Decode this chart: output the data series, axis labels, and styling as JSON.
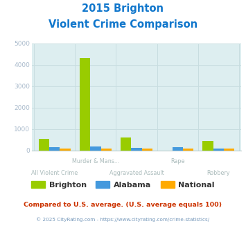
{
  "title_line1": "2015 Brighton",
  "title_line2": "Violent Crime Comparison",
  "categories": [
    "All Violent Crime",
    "Murder & Mans...",
    "Aggravated Assault",
    "Rape",
    "Robbery"
  ],
  "brighton_values": [
    550,
    4300,
    600,
    0,
    430
  ],
  "alabama_values": [
    150,
    185,
    130,
    155,
    90
  ],
  "national_values": [
    100,
    100,
    100,
    100,
    100
  ],
  "brighton_color": "#99cc00",
  "alabama_color": "#4499dd",
  "national_color": "#ffaa00",
  "plot_bg": "#ddeef0",
  "ylim": [
    0,
    5000
  ],
  "yticks": [
    0,
    1000,
    2000,
    3000,
    4000,
    5000
  ],
  "footer_text1": "Compared to U.S. average. (U.S. average equals 100)",
  "footer_text2": "© 2025 CityRating.com - https://www.cityrating.com/crime-statistics/",
  "title_color": "#1177cc",
  "footer1_color": "#cc3300",
  "footer2_color": "#7799bb",
  "tick_color": "#aabbcc",
  "xlabel_color": "#aabbbb",
  "grid_color": "#c8dde0",
  "spine_color": "#bbcccc"
}
